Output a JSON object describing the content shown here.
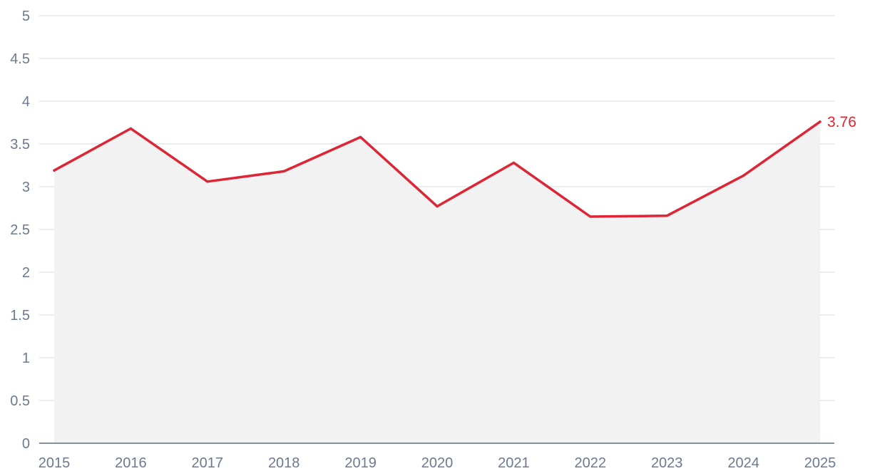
{
  "chart_data": {
    "type": "area",
    "x": [
      "2015",
      "2016",
      "2017",
      "2018",
      "2019",
      "2020",
      "2021",
      "2022",
      "2023",
      "2024",
      "2025"
    ],
    "series": [
      {
        "values": [
          3.19,
          3.68,
          3.06,
          3.18,
          3.58,
          2.77,
          3.28,
          2.65,
          2.66,
          3.13,
          3.76
        ],
        "color": "#dc2535"
      }
    ],
    "yticks": [
      0,
      0.5,
      1,
      1.5,
      2,
      2.5,
      3,
      3.5,
      4,
      4.5,
      5
    ],
    "ylim": [
      0,
      5
    ],
    "grid": true,
    "end_label": "3.76",
    "area_color": "#f2f2f2",
    "title": "",
    "xlabel": "",
    "ylabel": ""
  }
}
